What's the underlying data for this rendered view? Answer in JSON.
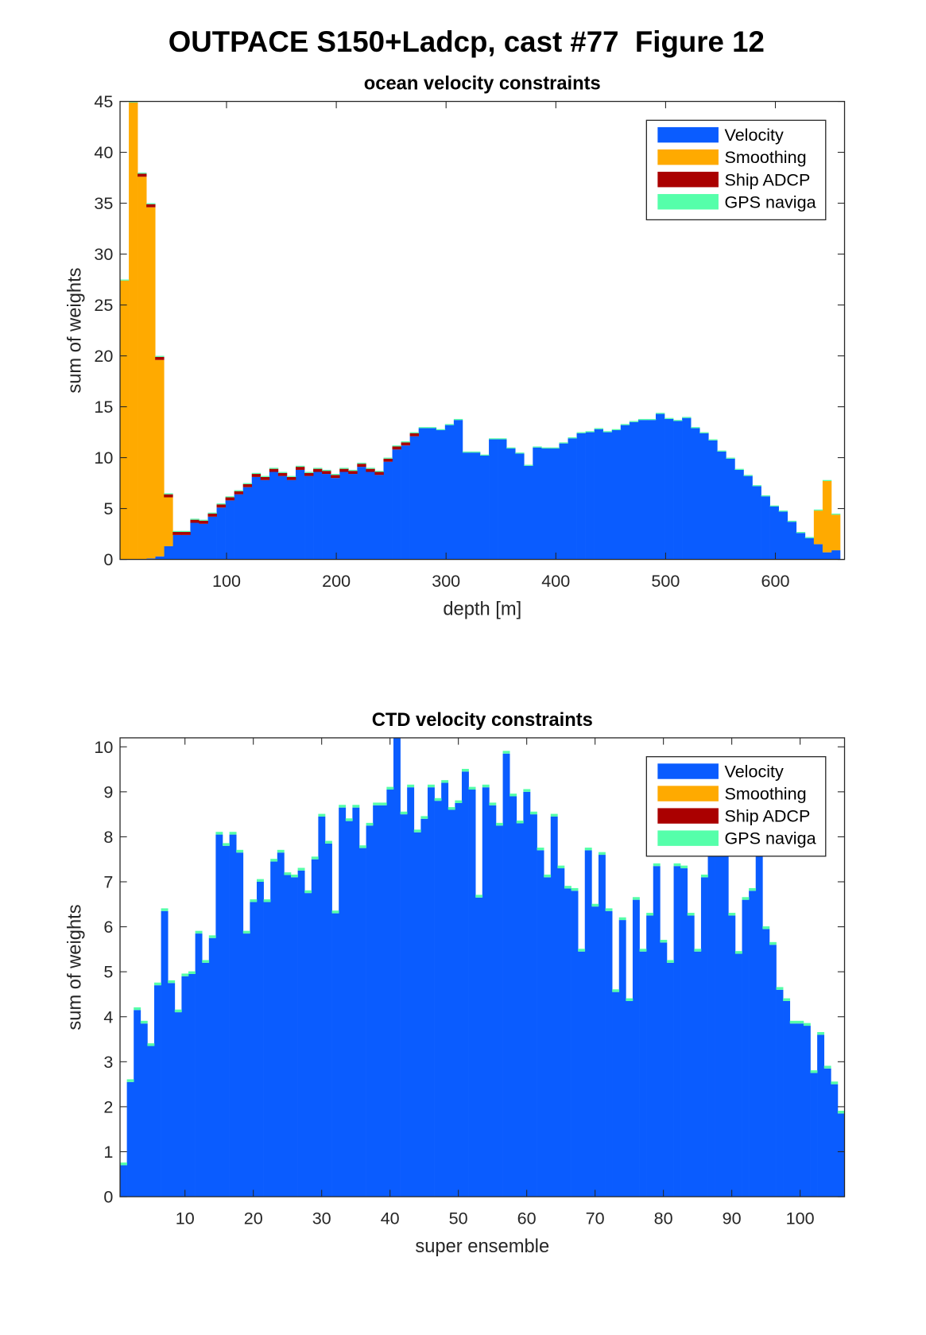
{
  "title": "OUTPACE S150+Ladcp, cast #77  Figure 12",
  "chart_data": [
    {
      "type": "bar",
      "stacked": true,
      "title": "ocean velocity constraints",
      "xlabel": "depth [m]",
      "ylabel": "sum of weights",
      "x": [
        7,
        15,
        23,
        31,
        39,
        47,
        55,
        63,
        71,
        79,
        87,
        95,
        103,
        111,
        119,
        127,
        135,
        143,
        151,
        159,
        167,
        175,
        183,
        191,
        199,
        207,
        215,
        223,
        231,
        239,
        247,
        255,
        263,
        271,
        279,
        287,
        295,
        303,
        311,
        319,
        327,
        335,
        343,
        351,
        359,
        367,
        375,
        383,
        391,
        399,
        407,
        415,
        423,
        431,
        439,
        447,
        455,
        463,
        471,
        479,
        487,
        495,
        503,
        511,
        519,
        527,
        535,
        543,
        551,
        559,
        567,
        575,
        583,
        591,
        599,
        607,
        615,
        623,
        631,
        639,
        647,
        655
      ],
      "series": [
        {
          "name": "Velocity",
          "color": "#0a5cff",
          "values": [
            0,
            0,
            0,
            0.1,
            0.3,
            1.3,
            2.4,
            2.4,
            3.6,
            3.5,
            4.2,
            5.1,
            5.8,
            6.4,
            7.1,
            8.1,
            7.8,
            8.6,
            8.2,
            7.8,
            8.8,
            8.2,
            8.6,
            8.4,
            8.0,
            8.6,
            8.4,
            9.1,
            8.6,
            8.3,
            9.6,
            10.8,
            11.2,
            12.1,
            12.9,
            12.9,
            12.7,
            13.2,
            13.7,
            10.5,
            10.5,
            10.2,
            11.8,
            11.8,
            10.9,
            10.4,
            9.2,
            11.0,
            10.9,
            10.9,
            11.4,
            11.9,
            12.4,
            12.5,
            12.8,
            12.5,
            12.7,
            13.2,
            13.5,
            13.7,
            13.7,
            14.3,
            13.8,
            13.6,
            13.9,
            12.9,
            12.4,
            11.7,
            10.6,
            9.9,
            8.8,
            8.2,
            7.2,
            6.2,
            5.2,
            4.7,
            3.7,
            2.6,
            2.1,
            1.5,
            0.7,
            0.9
          ]
        },
        {
          "name": "Smoothing",
          "color": "#ffaa00",
          "values": [
            27.4,
            44.9,
            37.6,
            34.5,
            19.3,
            4.8,
            0,
            0,
            0,
            0,
            0,
            0,
            0,
            0,
            0,
            0,
            0,
            0,
            0,
            0,
            0,
            0,
            0,
            0,
            0,
            0,
            0,
            0,
            0,
            0,
            0,
            0,
            0,
            0,
            0,
            0,
            0,
            0,
            0,
            0,
            0,
            0,
            0,
            0,
            0,
            0,
            0,
            0,
            0,
            0,
            0,
            0,
            0,
            0,
            0,
            0,
            0,
            0,
            0,
            0,
            0,
            0,
            0,
            0,
            0,
            0,
            0,
            0,
            0,
            0,
            0,
            0,
            0,
            0,
            0,
            0,
            0,
            0,
            0,
            3.3,
            7.0,
            3.5
          ]
        },
        {
          "name": "Ship ADCP",
          "color": "#aa0000",
          "values": [
            0,
            0,
            0.3,
            0.3,
            0.3,
            0.3,
            0.3,
            0.3,
            0.3,
            0.3,
            0.3,
            0.3,
            0.3,
            0.3,
            0.3,
            0.3,
            0.3,
            0.3,
            0.3,
            0.3,
            0.3,
            0.3,
            0.3,
            0.3,
            0.3,
            0.3,
            0.3,
            0.3,
            0.3,
            0.3,
            0.3,
            0.3,
            0.3,
            0.3,
            0,
            0,
            0,
            0,
            0,
            0,
            0,
            0,
            0,
            0,
            0,
            0,
            0,
            0,
            0,
            0,
            0,
            0,
            0,
            0,
            0,
            0,
            0,
            0,
            0,
            0,
            0,
            0,
            0,
            0,
            0,
            0,
            0,
            0,
            0,
            0,
            0,
            0,
            0,
            0,
            0,
            0,
            0,
            0,
            0,
            0,
            0,
            0
          ]
        },
        {
          "name": "GPS naviga",
          "color": "#55ffaa",
          "values": [
            0.1,
            0.1,
            0.1,
            0.1,
            0.1,
            0.1,
            0.1,
            0.1,
            0.1,
            0.1,
            0.1,
            0.1,
            0.1,
            0.1,
            0.1,
            0.1,
            0.1,
            0.1,
            0.1,
            0.1,
            0.1,
            0.1,
            0.1,
            0.1,
            0.1,
            0.1,
            0.1,
            0.1,
            0.1,
            0.1,
            0.1,
            0.1,
            0.1,
            0.1,
            0.1,
            0.1,
            0.1,
            0.1,
            0.1,
            0.1,
            0.1,
            0.1,
            0.1,
            0.1,
            0.1,
            0.1,
            0.1,
            0.1,
            0.1,
            0.1,
            0.1,
            0.1,
            0.1,
            0.1,
            0.1,
            0.1,
            0.1,
            0.1,
            0.1,
            0.1,
            0.1,
            0.1,
            0.1,
            0.1,
            0.1,
            0.1,
            0.1,
            0.1,
            0.1,
            0.1,
            0.1,
            0.1,
            0.1,
            0.1,
            0.1,
            0.1,
            0.1,
            0.1,
            0.1,
            0.1,
            0.1,
            0.1
          ]
        }
      ],
      "xlim": [
        3,
        663
      ],
      "ylim": [
        0,
        45
      ],
      "xticks": [
        100,
        200,
        300,
        400,
        500,
        600
      ],
      "yticks": [
        0,
        5,
        10,
        15,
        20,
        25,
        30,
        35,
        40,
        45
      ],
      "legend": "upper right"
    },
    {
      "type": "bar",
      "stacked": true,
      "title": "CTD velocity constraints",
      "xlabel": "super ensemble",
      "ylabel": "sum of weights",
      "x": [
        1,
        2,
        3,
        4,
        5,
        6,
        7,
        8,
        9,
        10,
        11,
        12,
        13,
        14,
        15,
        16,
        17,
        18,
        19,
        20,
        21,
        22,
        23,
        24,
        25,
        26,
        27,
        28,
        29,
        30,
        31,
        32,
        33,
        34,
        35,
        36,
        37,
        38,
        39,
        40,
        41,
        42,
        43,
        44,
        45,
        46,
        47,
        48,
        49,
        50,
        51,
        52,
        53,
        54,
        55,
        56,
        57,
        58,
        59,
        60,
        61,
        62,
        63,
        64,
        65,
        66,
        67,
        68,
        69,
        70,
        71,
        72,
        73,
        74,
        75,
        76,
        77,
        78,
        79,
        80,
        81,
        82,
        83,
        84,
        85,
        86,
        87,
        88,
        89,
        90,
        91,
        92,
        93,
        94,
        95,
        96,
        97,
        98,
        99,
        100,
        101,
        102,
        103,
        104,
        105,
        106
      ],
      "series": [
        {
          "name": "Velocity",
          "color": "#0a5cff",
          "values": [
            0.7,
            2.55,
            4.15,
            3.85,
            3.35,
            4.7,
            6.35,
            4.75,
            4.1,
            4.9,
            4.95,
            5.85,
            5.2,
            5.75,
            8.05,
            7.8,
            8.05,
            7.65,
            5.85,
            6.55,
            7.0,
            6.55,
            7.45,
            7.65,
            7.15,
            7.1,
            7.25,
            6.75,
            7.5,
            8.45,
            7.85,
            6.3,
            8.65,
            8.35,
            8.65,
            7.75,
            8.25,
            8.7,
            8.7,
            9.05,
            10.2,
            8.5,
            9.1,
            8.1,
            8.4,
            9.1,
            8.8,
            9.2,
            8.6,
            8.75,
            9.45,
            9.05,
            6.65,
            9.1,
            8.7,
            8.25,
            9.85,
            8.9,
            8.3,
            9.0,
            8.5,
            7.7,
            7.1,
            8.45,
            7.3,
            6.85,
            6.8,
            5.45,
            7.7,
            6.45,
            7.6,
            6.35,
            4.55,
            6.15,
            4.35,
            6.6,
            5.45,
            6.25,
            7.35,
            5.65,
            5.2,
            7.35,
            7.3,
            6.25,
            5.45,
            7.1,
            7.8,
            7.8,
            7.8,
            6.25,
            5.4,
            6.6,
            6.8,
            7.6,
            5.95,
            5.6,
            4.6,
            4.35,
            3.85,
            3.85,
            3.8,
            2.75,
            3.6,
            2.85,
            2.5,
            1.85
          ]
        },
        {
          "name": "Smoothing",
          "color": "#ffaa00",
          "values": [
            0,
            0,
            0,
            0,
            0,
            0,
            0,
            0,
            0,
            0,
            0,
            0,
            0,
            0,
            0,
            0,
            0,
            0,
            0,
            0,
            0,
            0,
            0,
            0,
            0,
            0,
            0,
            0,
            0,
            0,
            0,
            0,
            0,
            0,
            0,
            0,
            0,
            0,
            0,
            0,
            0,
            0,
            0,
            0,
            0,
            0,
            0,
            0,
            0,
            0,
            0,
            0,
            0,
            0,
            0,
            0,
            0,
            0,
            0,
            0,
            0,
            0,
            0,
            0,
            0,
            0,
            0,
            0,
            0,
            0,
            0,
            0,
            0,
            0,
            0,
            0,
            0,
            0,
            0,
            0,
            0,
            0,
            0,
            0,
            0,
            0,
            0,
            0,
            0,
            0,
            0,
            0,
            0,
            0,
            0,
            0,
            0,
            0,
            0,
            0,
            0,
            0,
            0,
            0,
            0,
            0
          ]
        },
        {
          "name": "Ship ADCP",
          "color": "#aa0000",
          "values": [
            0,
            0,
            0,
            0,
            0,
            0,
            0,
            0,
            0,
            0,
            0,
            0,
            0,
            0,
            0,
            0,
            0,
            0,
            0,
            0,
            0,
            0,
            0,
            0,
            0,
            0,
            0,
            0,
            0,
            0,
            0,
            0,
            0,
            0,
            0,
            0,
            0,
            0,
            0,
            0,
            0,
            0,
            0,
            0,
            0,
            0,
            0,
            0,
            0,
            0,
            0,
            0,
            0,
            0,
            0,
            0,
            0,
            0,
            0,
            0,
            0,
            0,
            0,
            0,
            0,
            0,
            0,
            0,
            0,
            0,
            0,
            0,
            0,
            0,
            0,
            0,
            0,
            0,
            0,
            0,
            0,
            0,
            0,
            0,
            0,
            0,
            0,
            0,
            0,
            0,
            0,
            0,
            0,
            0,
            0,
            0,
            0,
            0,
            0,
            0,
            0,
            0,
            0,
            0,
            0,
            0
          ]
        },
        {
          "name": "GPS naviga",
          "color": "#55ffaa",
          "values": [
            0.06,
            0.06,
            0.06,
            0.06,
            0.06,
            0.06,
            0.06,
            0.06,
            0.06,
            0.06,
            0.06,
            0.06,
            0.06,
            0.06,
            0.06,
            0.06,
            0.06,
            0.06,
            0.06,
            0.06,
            0.06,
            0.06,
            0.06,
            0.06,
            0.06,
            0.06,
            0.06,
            0.06,
            0.06,
            0.06,
            0.06,
            0.06,
            0.06,
            0.06,
            0.06,
            0.06,
            0.06,
            0.06,
            0.06,
            0.06,
            0.06,
            0.06,
            0.06,
            0.06,
            0.06,
            0.06,
            0.06,
            0.06,
            0.06,
            0.06,
            0.06,
            0.06,
            0.06,
            0.06,
            0.06,
            0.06,
            0.06,
            0.06,
            0.06,
            0.06,
            0.06,
            0.06,
            0.06,
            0.06,
            0.06,
            0.06,
            0.06,
            0.06,
            0.06,
            0.06,
            0.06,
            0.06,
            0.06,
            0.06,
            0.06,
            0.06,
            0.06,
            0.06,
            0.06,
            0.06,
            0.06,
            0.06,
            0.06,
            0.06,
            0.06,
            0.06,
            0.06,
            0.06,
            0.06,
            0.06,
            0.06,
            0.06,
            0.06,
            0.06,
            0.06,
            0.06,
            0.06,
            0.06,
            0.06,
            0.06,
            0.06,
            0.06,
            0.06,
            0.06,
            0.06,
            0.06
          ]
        }
      ],
      "xlim": [
        0.5,
        106.5
      ],
      "ylim": [
        0,
        10.2
      ],
      "xticks": [
        10,
        20,
        30,
        40,
        50,
        60,
        70,
        80,
        90,
        100
      ],
      "yticks": [
        0,
        1,
        2,
        3,
        4,
        5,
        6,
        7,
        8,
        9,
        10
      ],
      "legend": "upper right"
    }
  ]
}
